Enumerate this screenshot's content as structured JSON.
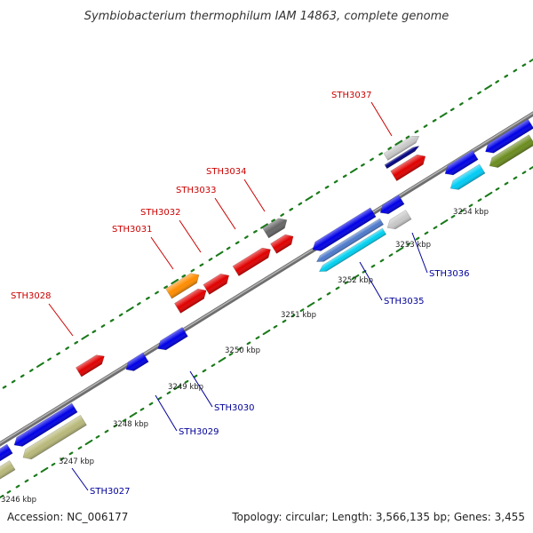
{
  "title": "Symbiobacterium thermophilum IAM 14863, complete genome",
  "footer": {
    "accession": "Accession: NC_006177",
    "summary": "Topology: circular; Length: 3,566,135 bp; Genes: 3,455"
  },
  "colors": {
    "forward_label": "#cc0000",
    "reverse_label": "#000099",
    "backbone": "#8c8c8c",
    "tick": "#1a7a1a"
  },
  "kbp_labels": [
    "3246 kbp",
    "3247 kbp",
    "3248 kbp",
    "3249 kbp",
    "3250 kbp",
    "3251 kbp",
    "3252 kbp",
    "3253 kbp",
    "3254 kbp"
  ],
  "gene_labels": [
    {
      "name": "STH3028",
      "strand": "forward"
    },
    {
      "name": "STH3031",
      "strand": "forward"
    },
    {
      "name": "STH3032",
      "strand": "forward"
    },
    {
      "name": "STH3033",
      "strand": "forward"
    },
    {
      "name": "STH3034",
      "strand": "forward"
    },
    {
      "name": "STH3037",
      "strand": "forward"
    },
    {
      "name": "STH3027",
      "strand": "reverse"
    },
    {
      "name": "STH3029",
      "strand": "reverse"
    },
    {
      "name": "STH3030",
      "strand": "reverse"
    },
    {
      "name": "STH3035",
      "strand": "reverse"
    },
    {
      "name": "STH3036",
      "strand": "reverse"
    }
  ],
  "features": [
    {
      "color": "#e00000"
    },
    {
      "color": "#ff8c00"
    },
    {
      "color": "#e00000"
    },
    {
      "color": "#e00000"
    },
    {
      "color": "#e00000"
    },
    {
      "color": "#e00000"
    },
    {
      "color": "#666666"
    },
    {
      "color": "#c8c8c8"
    },
    {
      "color": "#e00000"
    },
    {
      "color": "#0000e6"
    },
    {
      "color": "#0000e6"
    },
    {
      "color": "#0000e6"
    },
    {
      "color": "#0000e6"
    },
    {
      "color": "#0000e6"
    },
    {
      "color": "#0000e6"
    },
    {
      "color": "#0000e6"
    },
    {
      "color": "#0000e6"
    },
    {
      "color": "#0000e6"
    },
    {
      "color": "#b8b87a"
    },
    {
      "color": "#b8b87a"
    },
    {
      "color": "#4d7acc"
    },
    {
      "color": "#00d0f0"
    },
    {
      "color": "#c8c8c8"
    },
    {
      "color": "#00ccf5"
    },
    {
      "color": "#6b8c1f"
    },
    {
      "color": "#000080"
    }
  ]
}
